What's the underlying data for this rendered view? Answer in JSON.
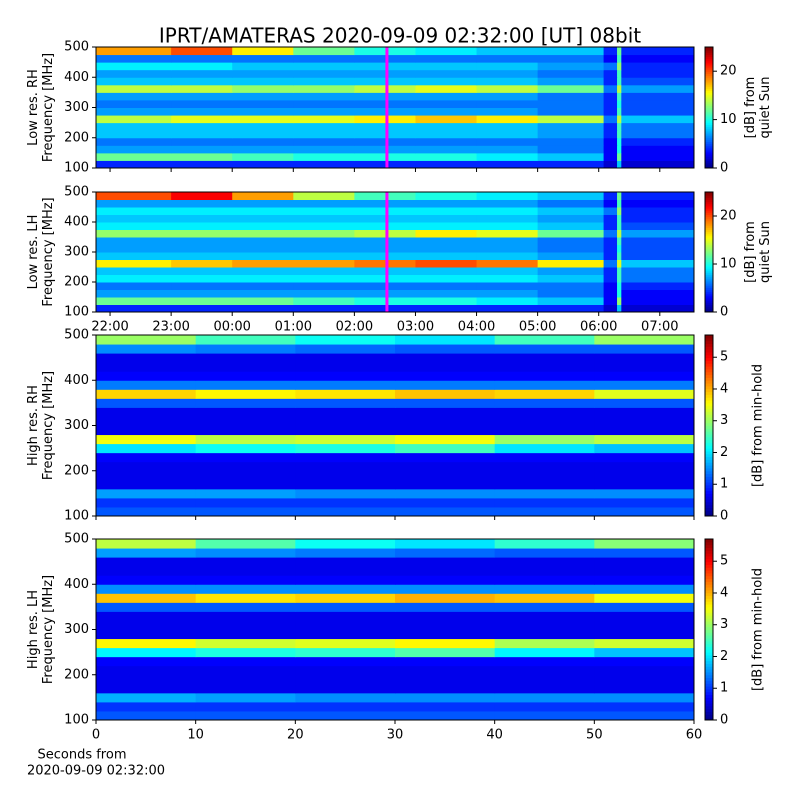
{
  "title": "IPRT/AMATERAS 2020-09-09 02:32:00 [UT]   08bit",
  "colormap": "jet",
  "chart_data": [
    {
      "type": "heatmap",
      "ylabel": [
        "Low res. RH",
        "Frequency [MHz]"
      ],
      "xlim": [
        21.77,
        31.56
      ],
      "xticks": [
        22,
        23,
        24,
        25,
        26,
        27,
        28,
        29,
        30,
        31
      ],
      "xtick_labels": false,
      "ylim": [
        100,
        500
      ],
      "yticks": [
        100,
        200,
        300,
        400,
        500
      ],
      "cursor": 26.533,
      "cursor_color": "#ff00ff",
      "x_bins": [
        21.77,
        23,
        24,
        25,
        26,
        27,
        28,
        29,
        30.08,
        30.3,
        30.37,
        31.56
      ],
      "y_bins": [
        100,
        125,
        150,
        175,
        200,
        225,
        250,
        275,
        300,
        325,
        350,
        375,
        400,
        425,
        450,
        475,
        500
      ],
      "z": [
        [
          4,
          4,
          4,
          4,
          4,
          4,
          4,
          4,
          2,
          8,
          2
        ],
        [
          12,
          12,
          11,
          10,
          10,
          10,
          9,
          8,
          3,
          12,
          3
        ],
        [
          7,
          7,
          7,
          7,
          7,
          7,
          7,
          6,
          3,
          10,
          3
        ],
        [
          6,
          6,
          6,
          6,
          6,
          6,
          6,
          6,
          3,
          10,
          4
        ],
        [
          8,
          8,
          8,
          8,
          8,
          8,
          8,
          7,
          4,
          11,
          6
        ],
        [
          8,
          8,
          8,
          8,
          8,
          8,
          8,
          7,
          4,
          11,
          6
        ],
        [
          14,
          15,
          15,
          15,
          16,
          17,
          16,
          14,
          6,
          14,
          8
        ],
        [
          7,
          7,
          7,
          7,
          7,
          7,
          7,
          6,
          4,
          11,
          5
        ],
        [
          6,
          6,
          6,
          6,
          6,
          6,
          6,
          6,
          4,
          10,
          5
        ],
        [
          7,
          7,
          7,
          7,
          7,
          7,
          7,
          6,
          4,
          11,
          5
        ],
        [
          14,
          14,
          13,
          13,
          14,
          15,
          14,
          12,
          6,
          14,
          7
        ],
        [
          8,
          8,
          8,
          8,
          8,
          8,
          8,
          7,
          4,
          11,
          5
        ],
        [
          7,
          7,
          7,
          7,
          7,
          7,
          7,
          6,
          4,
          11,
          4
        ],
        [
          9,
          9,
          8,
          8,
          8,
          8,
          8,
          7,
          6,
          13,
          4
        ],
        [
          6,
          6,
          6,
          6,
          6,
          6,
          6,
          6,
          3,
          11,
          3
        ],
        [
          18,
          20,
          16,
          12,
          10,
          9,
          8,
          8,
          4,
          12,
          4
        ]
      ],
      "clim": [
        0,
        25
      ],
      "cticks": [
        0,
        10,
        20
      ],
      "clabel": [
        "[dB] from",
        "quiet Sun"
      ]
    },
    {
      "type": "heatmap",
      "ylabel": [
        "Low res. LH",
        "Frequency [MHz]"
      ],
      "xlim": [
        21.77,
        31.56
      ],
      "xticks": [
        {
          "value": 22,
          "label": "22:00"
        },
        {
          "value": 23,
          "label": "23:00"
        },
        {
          "value": 24,
          "label": "00:00"
        },
        {
          "value": 25,
          "label": "01:00"
        },
        {
          "value": 26,
          "label": "02:00"
        },
        {
          "value": 27,
          "label": "03:00"
        },
        {
          "value": 28,
          "label": "04:00"
        },
        {
          "value": 29,
          "label": "05:00"
        },
        {
          "value": 30,
          "label": "06:00"
        },
        {
          "value": 31,
          "label": "07:00"
        }
      ],
      "xtick_labels": true,
      "ylim": [
        100,
        500
      ],
      "yticks": [
        100,
        200,
        300,
        400,
        500
      ],
      "cursor": 26.533,
      "cursor_color": "#ff00ff",
      "x_bins": [
        21.77,
        23,
        24,
        25,
        26,
        27,
        28,
        29,
        30.08,
        30.3,
        30.37,
        31.56
      ],
      "y_bins": [
        100,
        125,
        150,
        175,
        200,
        225,
        250,
        275,
        300,
        325,
        350,
        375,
        400,
        425,
        450,
        475,
        500
      ],
      "z": [
        [
          4,
          4,
          4,
          4,
          4,
          4,
          4,
          4,
          2,
          8,
          2
        ],
        [
          12,
          12,
          12,
          11,
          10,
          10,
          9,
          8,
          3,
          13,
          3
        ],
        [
          7,
          7,
          7,
          7,
          7,
          7,
          7,
          6,
          3,
          10,
          3
        ],
        [
          6,
          6,
          6,
          6,
          6,
          6,
          6,
          6,
          3,
          10,
          4
        ],
        [
          9,
          9,
          9,
          9,
          9,
          9,
          9,
          8,
          4,
          11,
          6
        ],
        [
          8,
          8,
          8,
          8,
          8,
          8,
          8,
          7,
          4,
          11,
          6
        ],
        [
          16,
          17,
          18,
          18,
          19,
          20,
          19,
          16,
          6,
          15,
          8
        ],
        [
          8,
          8,
          8,
          8,
          8,
          8,
          8,
          7,
          4,
          11,
          5
        ],
        [
          7,
          7,
          7,
          7,
          7,
          7,
          7,
          6,
          4,
          10,
          5
        ],
        [
          7,
          7,
          7,
          7,
          7,
          7,
          7,
          6,
          4,
          11,
          5
        ],
        [
          13,
          13,
          13,
          13,
          14,
          16,
          15,
          12,
          6,
          14,
          7
        ],
        [
          9,
          9,
          9,
          9,
          9,
          9,
          9,
          8,
          4,
          11,
          5
        ],
        [
          8,
          8,
          8,
          8,
          8,
          8,
          8,
          7,
          4,
          11,
          4
        ],
        [
          9,
          9,
          9,
          9,
          9,
          9,
          9,
          8,
          6,
          13,
          4
        ],
        [
          7,
          7,
          7,
          7,
          7,
          7,
          7,
          6,
          3,
          11,
          3
        ],
        [
          20,
          22,
          18,
          14,
          11,
          10,
          9,
          8,
          4,
          12,
          4
        ]
      ],
      "clim": [
        0,
        25
      ],
      "cticks": [
        0,
        10,
        20
      ],
      "clabel": [
        "[dB] from",
        "quiet Sun"
      ]
    },
    {
      "type": "heatmap",
      "ylabel": [
        "High res. RH",
        "Frequency [MHz]"
      ],
      "xlim": [
        0,
        60
      ],
      "xticks": [
        0,
        10,
        20,
        30,
        40,
        50,
        60
      ],
      "xtick_labels": false,
      "ylim": [
        100,
        500
      ],
      "yticks": [
        100,
        200,
        300,
        400,
        500
      ],
      "x_bins": [
        0,
        10,
        20,
        30,
        40,
        50,
        60
      ],
      "y_bins": [
        100,
        120,
        140,
        160,
        180,
        200,
        220,
        240,
        260,
        280,
        300,
        320,
        340,
        360,
        380,
        400,
        420,
        440,
        460,
        480,
        500
      ],
      "z": [
        [
          1.2,
          1.2,
          1.2,
          1.2,
          1.2,
          1.2
        ],
        [
          1,
          1,
          1,
          1,
          1,
          1
        ],
        [
          1.6,
          1.6,
          1.5,
          1.5,
          1.5,
          1.5
        ],
        [
          0.6,
          0.6,
          0.6,
          0.6,
          0.6,
          0.6
        ],
        [
          0.6,
          0.6,
          0.6,
          0.6,
          0.6,
          0.6
        ],
        [
          0.6,
          0.6,
          0.6,
          0.6,
          0.6,
          0.6
        ],
        [
          0.7,
          0.7,
          0.7,
          0.7,
          0.7,
          0.7
        ],
        [
          2,
          2.2,
          2.3,
          2.5,
          2,
          1.8
        ],
        [
          3.5,
          3.2,
          3.3,
          3.5,
          3,
          3.2
        ],
        [
          0.6,
          0.6,
          0.6,
          0.6,
          0.6,
          0.6
        ],
        [
          0.6,
          0.6,
          0.6,
          0.6,
          0.6,
          0.6
        ],
        [
          0.6,
          0.6,
          0.6,
          0.6,
          0.6,
          0.6
        ],
        [
          1.2,
          1.2,
          1.2,
          1.2,
          1.2,
          1.2
        ],
        [
          3.8,
          3.6,
          3.7,
          3.9,
          3.8,
          3.4
        ],
        [
          1.4,
          1.4,
          1.4,
          1.4,
          1.4,
          1.4
        ],
        [
          0.7,
          0.7,
          0.7,
          0.7,
          0.7,
          0.7
        ],
        [
          0.6,
          0.6,
          0.6,
          0.6,
          0.6,
          0.6
        ],
        [
          0.6,
          0.6,
          0.6,
          0.6,
          0.6,
          0.6
        ],
        [
          1.5,
          1.4,
          1.3,
          1.2,
          1.2,
          1.2
        ],
        [
          3,
          2.5,
          2.2,
          2,
          2.5,
          3
        ]
      ],
      "clim": [
        0,
        5.7
      ],
      "cticks": [
        0,
        1,
        2,
        3,
        4,
        5
      ],
      "clabel": [
        "[dB] from min-hold"
      ]
    },
    {
      "type": "heatmap",
      "ylabel": [
        "High res. LH",
        "Frequency [MHz]"
      ],
      "xlim": [
        0,
        60
      ],
      "xticks": [
        0,
        10,
        20,
        30,
        40,
        50,
        60
      ],
      "xtick_labels": true,
      "xlabel": [
        "Seconds from",
        "2020-09-09 02:32:00"
      ],
      "ylim": [
        100,
        500
      ],
      "yticks": [
        100,
        200,
        300,
        400,
        500
      ],
      "x_bins": [
        0,
        10,
        20,
        30,
        40,
        50,
        60
      ],
      "y_bins": [
        100,
        120,
        140,
        160,
        180,
        200,
        220,
        240,
        260,
        280,
        300,
        320,
        340,
        360,
        380,
        400,
        420,
        440,
        460,
        480,
        500
      ],
      "z": [
        [
          1.2,
          1.2,
          1.2,
          1.2,
          1.2,
          1.2
        ],
        [
          1,
          1,
          1,
          1,
          1,
          1
        ],
        [
          1.7,
          1.6,
          1.5,
          1.5,
          1.5,
          1.5
        ],
        [
          0.6,
          0.6,
          0.6,
          0.6,
          0.6,
          0.6
        ],
        [
          0.6,
          0.6,
          0.6,
          0.6,
          0.6,
          0.6
        ],
        [
          0.6,
          0.6,
          0.6,
          0.6,
          0.6,
          0.6
        ],
        [
          0.7,
          0.7,
          0.7,
          0.7,
          0.7,
          0.7
        ],
        [
          2.1,
          2.3,
          2.4,
          2.6,
          2.1,
          1.8
        ],
        [
          3.6,
          3.3,
          3.4,
          3.6,
          3.1,
          3.3
        ],
        [
          0.6,
          0.6,
          0.6,
          0.6,
          0.6,
          0.6
        ],
        [
          0.6,
          0.6,
          0.6,
          0.6,
          0.6,
          0.6
        ],
        [
          0.6,
          0.6,
          0.6,
          0.6,
          0.6,
          0.6
        ],
        [
          1.2,
          1.2,
          1.2,
          1.2,
          1.2,
          1.2
        ],
        [
          3.9,
          3.7,
          3.8,
          4,
          3.9,
          3.5
        ],
        [
          1.5,
          1.5,
          1.5,
          1.5,
          1.5,
          1.5
        ],
        [
          0.7,
          0.7,
          0.7,
          0.7,
          0.7,
          0.7
        ],
        [
          0.6,
          0.6,
          0.6,
          0.6,
          0.6,
          0.6
        ],
        [
          0.6,
          0.6,
          0.6,
          0.6,
          0.6,
          0.6
        ],
        [
          1.6,
          1.5,
          1.4,
          1.3,
          1.2,
          1.2
        ],
        [
          3.2,
          2.6,
          2.2,
          2,
          2.4,
          2.9
        ]
      ],
      "clim": [
        0,
        5.7
      ],
      "cticks": [
        0,
        1,
        2,
        3,
        4,
        5
      ],
      "clabel": [
        "[dB] from min-hold"
      ]
    }
  ]
}
